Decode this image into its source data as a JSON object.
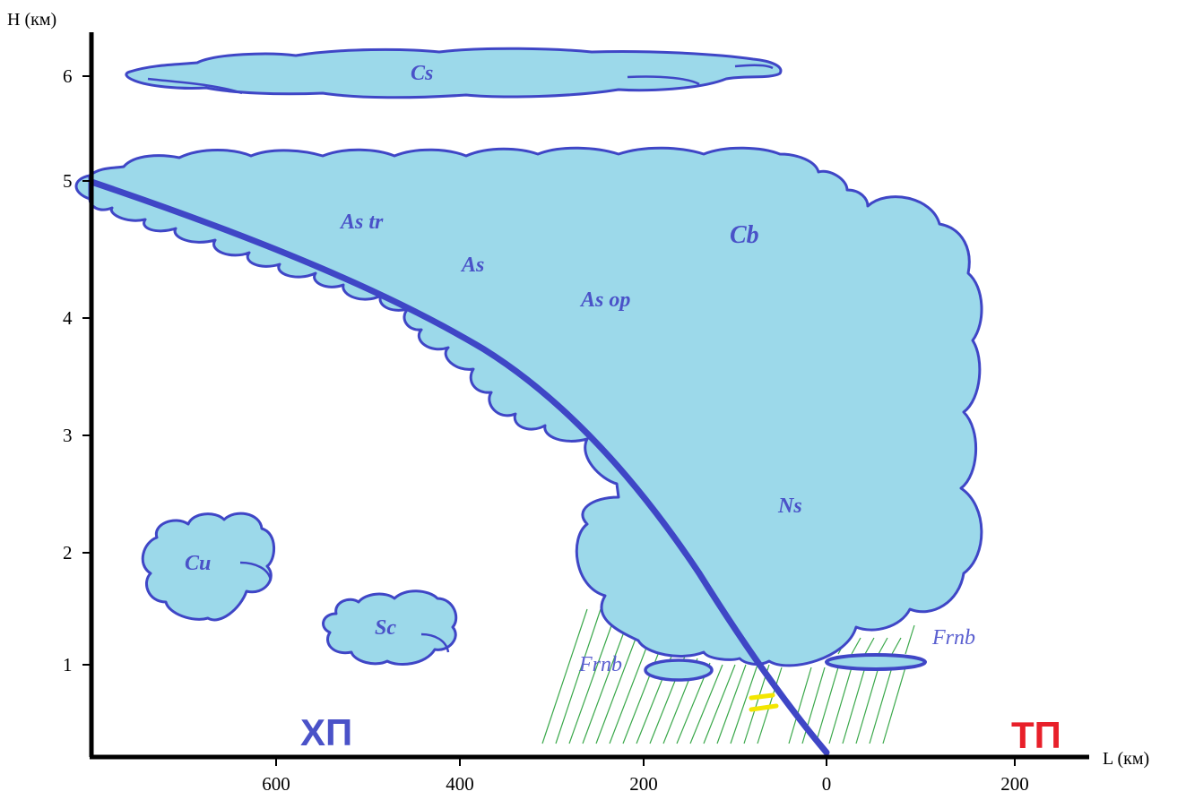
{
  "axes": {
    "y_label": "H (км)",
    "x_label": "L (км)",
    "y_ticks": [
      "1",
      "2",
      "3",
      "4",
      "5",
      "6"
    ],
    "x_ticks": [
      "600",
      "400",
      "200",
      "0",
      "200"
    ]
  },
  "clouds": {
    "cs": "Cs",
    "as_tr": "As tr",
    "as": "As",
    "as_op": "As op",
    "cb": "Cb",
    "ns": "Ns",
    "cu": "Cu",
    "sc": "Sc",
    "frnb_left": "Frnb",
    "frnb_right": "Frnb"
  },
  "air_masses": {
    "cold": "ХП",
    "warm": "ТП"
  },
  "colors": {
    "cloud_fill": "#9cd9ea",
    "cloud_outline": "#3f46c6",
    "front": "#3f46c6",
    "precip": "#3aa84a",
    "fog": "#f3e600",
    "cold_label": "#4a52c8",
    "warm_label": "#e8202a"
  }
}
